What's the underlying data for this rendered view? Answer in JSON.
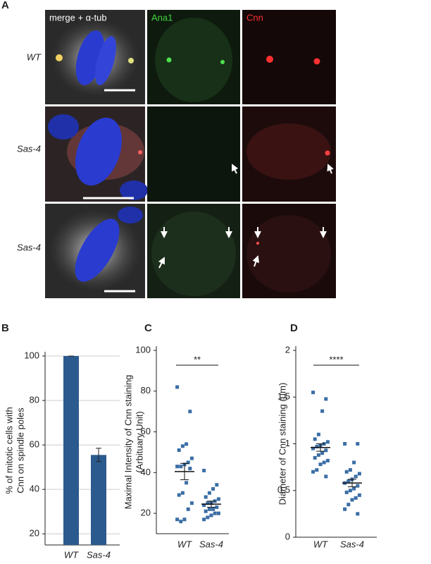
{
  "panel_a": {
    "label": "A",
    "columns": [
      "merge + α-tub",
      "Ana1",
      "Cnn"
    ],
    "rows": [
      "WT",
      "Sas-4",
      "Sas-4"
    ]
  },
  "chart_data": [
    {
      "type": "bar",
      "panel": "B",
      "ylabel": [
        "% of mitotic cells with",
        "Cnn on spindle poles"
      ],
      "categories": [
        "WT",
        "Sas-4"
      ],
      "values": [
        100,
        55.5
      ],
      "errors": [
        0,
        3
      ],
      "color": "#2b5a8e",
      "ylim": [
        15,
        100
      ],
      "yticks": [
        20,
        40,
        60,
        80,
        100
      ],
      "grid": true
    },
    {
      "type": "dotplot",
      "panel": "C",
      "ylabel": [
        "Maximal Intensity of Cnn staining",
        "(Arbituary Unit)"
      ],
      "categories": [
        "WT",
        "Sas-4"
      ],
      "values": [
        [
          82,
          70,
          54,
          53,
          51,
          47,
          45,
          44,
          43,
          43,
          42,
          35,
          30,
          29,
          25,
          22,
          17,
          16,
          17
        ],
        [
          41,
          34,
          32,
          30,
          28,
          27,
          26,
          25,
          25,
          24,
          23,
          22,
          22,
          21,
          20,
          20,
          19,
          18,
          17
        ]
      ],
      "mean": [
        40.5,
        24.5
      ],
      "sem": [
        4,
        1.5
      ],
      "color": "#3b6ea5",
      "significance": "**",
      "ylim": [
        10,
        100
      ],
      "yticks": [
        20,
        40,
        60,
        80,
        100
      ],
      "grid": false
    },
    {
      "type": "dotplot",
      "panel": "D",
      "ylabel": [
        "Diameter of Cnn staining (µm)"
      ],
      "categories": [
        "WT",
        "Sas-4"
      ],
      "values": [
        [
          1.55,
          1.48,
          1.35,
          1.1,
          1.05,
          1.02,
          1.0,
          0.98,
          0.97,
          0.95,
          0.93,
          0.9,
          0.88,
          0.85,
          0.82,
          0.8,
          0.78,
          0.72,
          0.7,
          0.65
        ],
        [
          1.0,
          1.0,
          0.8,
          0.72,
          0.7,
          0.68,
          0.65,
          0.62,
          0.6,
          0.58,
          0.55,
          0.52,
          0.5,
          0.48,
          0.45,
          0.42,
          0.4,
          0.35,
          0.3,
          0.25
        ]
      ],
      "mean": [
        0.96,
        0.58
      ],
      "sem": [
        0.04,
        0.04
      ],
      "color": "#3b6ea5",
      "significance": "****",
      "ylim": [
        0,
        2
      ],
      "yticks": [
        0,
        0.5,
        1,
        1.5,
        2
      ],
      "grid": false
    }
  ]
}
